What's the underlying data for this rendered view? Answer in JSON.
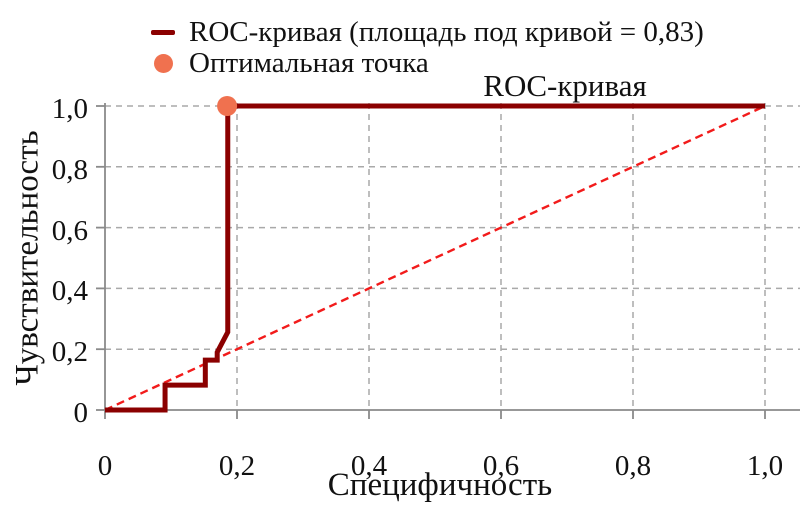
{
  "chart_data": {
    "type": "line",
    "title": "ROC-кривая",
    "xlabel": "Специфичность",
    "ylabel": "Чувствительность",
    "xlim": [
      0,
      1.05
    ],
    "ylim": [
      0,
      1.0
    ],
    "grid": "dashed horizontal and vertical gridlines at every tick",
    "x_ticks": {
      "values": [
        0,
        0.2,
        0.4,
        0.6,
        0.8,
        1.0
      ],
      "labels": [
        "0",
        "0,2",
        "0,4",
        "0,6",
        "0,8",
        "1,0"
      ]
    },
    "y_ticks": {
      "values": [
        0,
        0.2,
        0.4,
        0.6,
        0.8,
        1.0
      ],
      "labels": [
        "0",
        "0,2",
        "0,4",
        "0,6",
        "0,8",
        "1,0"
      ]
    },
    "legend": {
      "position": "top-left, outside plot",
      "entries": [
        {
          "label": "ROC-кривая (площадь под кривой = 0,83)",
          "marker": "line",
          "color": "#8b0000"
        },
        {
          "label": "Оптимальная точка",
          "marker": "dot",
          "color": "#f0714f"
        }
      ]
    },
    "auc": "0,83",
    "series": [
      {
        "name": "ROC-кривая",
        "style": "solid thick step line",
        "color": "#8b0000",
        "points": [
          [
            0,
            0
          ],
          [
            0.091,
            0
          ],
          [
            0.091,
            0.082
          ],
          [
            0.152,
            0.082
          ],
          [
            0.152,
            0.164
          ],
          [
            0.17,
            0.164
          ],
          [
            0.17,
            0.19
          ],
          [
            0.186,
            0.256
          ],
          [
            0.186,
            1.0
          ],
          [
            1.0,
            1.0
          ]
        ]
      },
      {
        "name": "диагональ случайного классификатора",
        "style": "dashed thin line",
        "color": "#f21b1b",
        "points": [
          [
            0,
            0
          ],
          [
            1.0,
            1.0
          ]
        ]
      }
    ],
    "optimal_point": {
      "x": 0.185,
      "y": 1.0,
      "color": "#f0714f",
      "label": "Оптимальная точка"
    },
    "colors": {
      "curve": "#8b0000",
      "diagonal": "#f21b1b",
      "optimal_point": "#f0714f",
      "grid": "#a9a9a9",
      "axis": "#8a8a8a",
      "text": "#111111",
      "background": "#ffffff"
    }
  }
}
